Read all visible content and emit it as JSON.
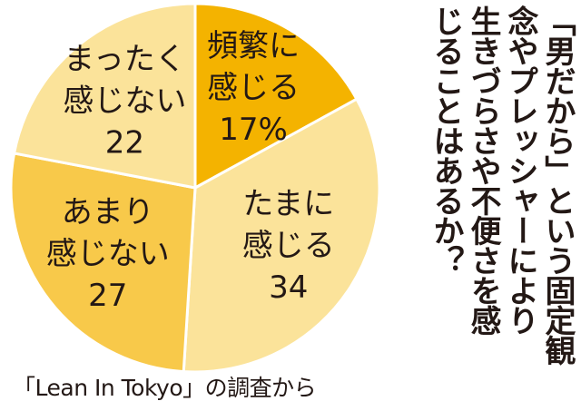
{
  "title": {
    "lines": [
      "「男だから」という固定観",
      "念やプレッシャーにより",
      "生きづらさや不便さを感",
      "じることはあるか？"
    ]
  },
  "source": "「Lean In Tokyo」の調査から",
  "colors": {
    "dark": "#F4B300",
    "mid": "#F8C94A",
    "light": "#FBE39A",
    "stroke": "#ffffff",
    "text": "#231815"
  },
  "chart_data": {
    "type": "pie",
    "title": "「男だから」という固定観念やプレッシャーにより生きづらさや不便さを感じることはあるか？",
    "unit": "%",
    "start_angle_deg": 0,
    "direction": "clockwise",
    "slices": [
      {
        "label_lines": [
          "頻繁に",
          "感じる"
        ],
        "value": 17,
        "value_text": "17%",
        "color": "#F4B300"
      },
      {
        "label_lines": [
          "たまに",
          "感じる"
        ],
        "value": 34,
        "value_text": "34",
        "color": "#FBE39A"
      },
      {
        "label_lines": [
          "あまり",
          "感じない"
        ],
        "value": 27,
        "value_text": "27",
        "color": "#F8C94A"
      },
      {
        "label_lines": [
          "まったく",
          "感じない"
        ],
        "value": 22,
        "value_text": "22",
        "color": "#FBE39A"
      }
    ]
  }
}
